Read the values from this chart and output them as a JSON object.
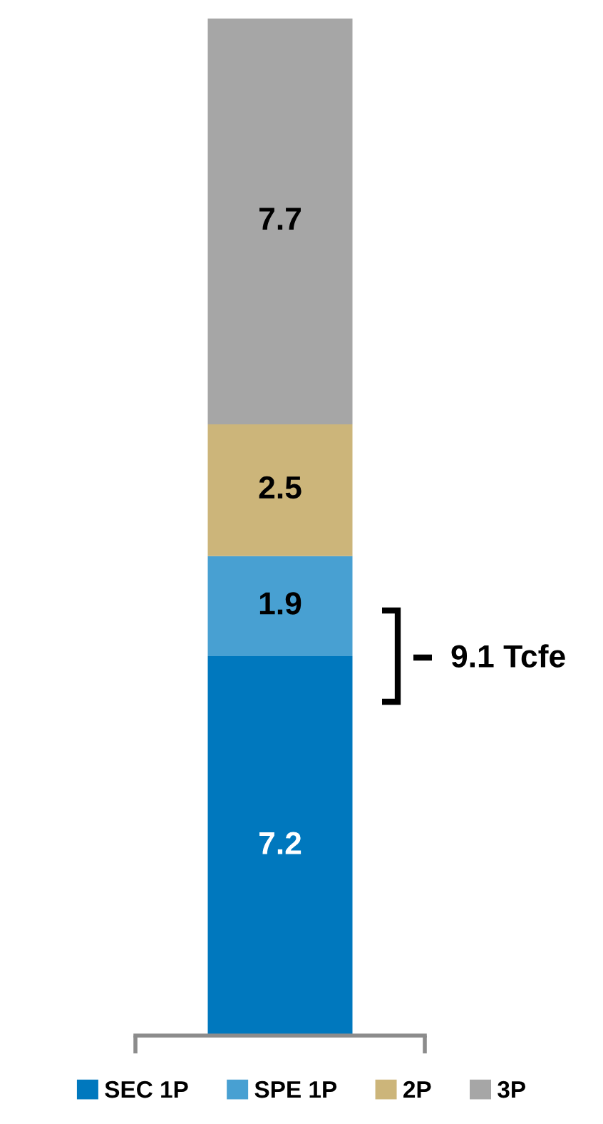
{
  "chart_data": {
    "type": "bar",
    "stacked": true,
    "categories": [
      null
    ],
    "series": [
      {
        "name": "SEC 1P",
        "color": "#0078be",
        "values": [
          7.2
        ]
      },
      {
        "name": "SPE 1P",
        "color": "#48a0d2",
        "values": [
          1.9
        ]
      },
      {
        "name": "2P",
        "color": "#ccb57a",
        "values": [
          2.5
        ]
      },
      {
        "name": "3P",
        "color": "#a6a6a6",
        "values": [
          7.7
        ]
      }
    ],
    "data_labels": true,
    "legend": "bottom",
    "annotations": [
      "9.1 Tcfe"
    ]
  }
}
